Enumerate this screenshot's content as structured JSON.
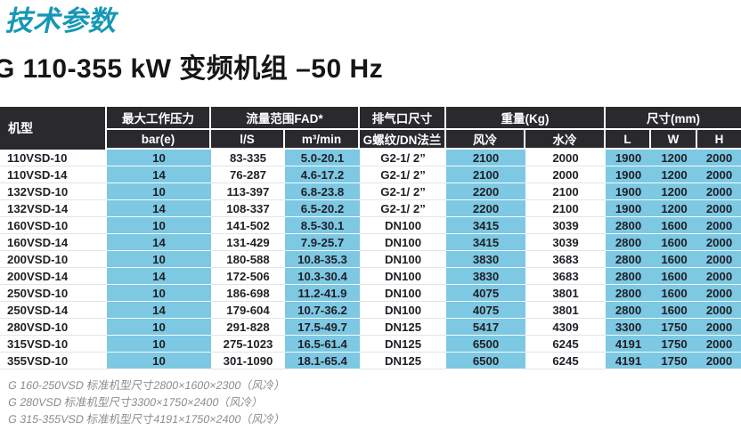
{
  "page": {
    "section_title": "技术参数",
    "table_title": "G 110-355 kW 变频机组 –50 Hz"
  },
  "colors": {
    "accent_teal": "#1697b5",
    "header_dark": "#2a292d",
    "cell_blue": "#7dc8e2"
  },
  "table": {
    "column_groups": [
      {
        "label": "机型"
      },
      {
        "label": "最大工作压力",
        "children": [
          "bar(e)"
        ]
      },
      {
        "label": "流量范围FAD*",
        "children": [
          "l/S",
          "m³/min"
        ]
      },
      {
        "label": "排气口尺寸",
        "children": [
          "G螺纹/DN法兰"
        ]
      },
      {
        "label": "重量(Kg)",
        "children": [
          "风冷",
          "水冷"
        ]
      },
      {
        "label": "尺寸(mm)",
        "children": [
          "L",
          "W",
          "H"
        ]
      }
    ],
    "highlight_columns": [
      1,
      3,
      5,
      7,
      8,
      9
    ],
    "rows": [
      [
        "110VSD-10",
        "10",
        "83-335",
        "5.0-20.1",
        "G2-1/ 2”",
        "2100",
        "2000",
        "1900",
        "1200",
        "2000"
      ],
      [
        "110VSD-14",
        "14",
        "76-287",
        "4.6-17.2",
        "G2-1/ 2”",
        "2100",
        "2000",
        "1900",
        "1200",
        "2000"
      ],
      [
        "132VSD-10",
        "10",
        "113-397",
        "6.8-23.8",
        "G2-1/ 2”",
        "2200",
        "2100",
        "1900",
        "1200",
        "2000"
      ],
      [
        "132VSD-14",
        "14",
        "108-337",
        "6.5-20.2",
        "G2-1/ 2”",
        "2200",
        "2100",
        "1900",
        "1200",
        "2000"
      ],
      [
        "160VSD-10",
        "10",
        "141-502",
        "8.5-30.1",
        "DN100",
        "3415",
        "3039",
        "2800",
        "1600",
        "2000"
      ],
      [
        "160VSD-14",
        "14",
        "131-429",
        "7.9-25.7",
        "DN100",
        "3415",
        "3039",
        "2800",
        "1600",
        "2000"
      ],
      [
        "200VSD-10",
        "10",
        "180-588",
        "10.8-35.3",
        "DN100",
        "3830",
        "3683",
        "2800",
        "1600",
        "2000"
      ],
      [
        "200VSD-14",
        "14",
        "172-506",
        "10.3-30.4",
        "DN100",
        "3830",
        "3683",
        "2800",
        "1600",
        "2000"
      ],
      [
        "250VSD-10",
        "10",
        "186-698",
        "11.2-41.9",
        "DN100",
        "4075",
        "3801",
        "2800",
        "1600",
        "2000"
      ],
      [
        "250VSD-14",
        "14",
        "179-604",
        "10.7-36.2",
        "DN100",
        "4075",
        "3801",
        "2800",
        "1600",
        "2000"
      ],
      [
        "280VSD-10",
        "10",
        "291-828",
        "17.5-49.7",
        "DN125",
        "5417",
        "4309",
        "3300",
        "1750",
        "2000"
      ],
      [
        "315VSD-10",
        "10",
        "275-1023",
        "16.5-61.4",
        "DN125",
        "6500",
        "6245",
        "4191",
        "1750",
        "2000"
      ],
      [
        "355VSD-10",
        "10",
        "301-1090",
        "18.1-65.4",
        "DN125",
        "6500",
        "6245",
        "4191",
        "1750",
        "2000"
      ]
    ]
  },
  "footnotes": [
    "G 160-250VSD 标准机型尺寸2800×1600×2300（风冷）",
    "G 280VSD 标准机型尺寸3300×1750×2400（风冷）",
    "G 315-355VSD 标准机型尺寸4191×1750×2400（风冷）"
  ]
}
